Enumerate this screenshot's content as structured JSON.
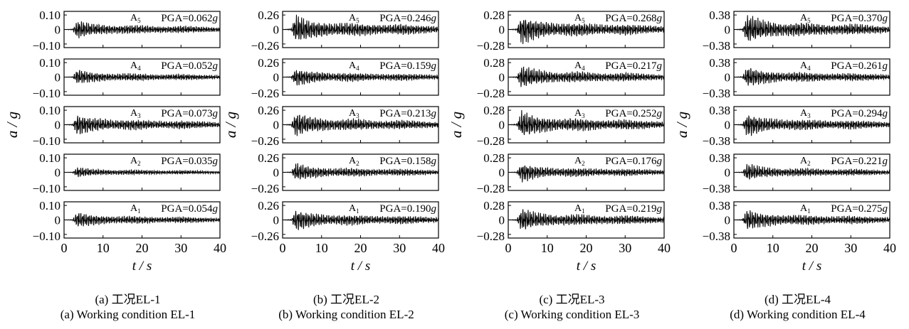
{
  "chart_data": [
    {
      "type": "line",
      "title": "",
      "xlabel": "t / s",
      "ylabel": "a / g",
      "xlim": [
        0,
        40
      ],
      "xticks": [
        "0",
        "10",
        "20",
        "30",
        "40"
      ],
      "amplitude": 0.1,
      "yticks": [
        "0.10",
        "0",
        "−0.10"
      ],
      "caption_cn": "(a)  工况EL-1",
      "caption_en": "(a)  Working condition EL-1",
      "series": [
        {
          "name": "A5",
          "label": "A",
          "sub": "5",
          "pga_text": "PGA=0.062",
          "pga": 0.062
        },
        {
          "name": "A4",
          "label": "A",
          "sub": "4",
          "pga_text": "PGA=0.052",
          "pga": 0.052
        },
        {
          "name": "A3",
          "label": "A",
          "sub": "3",
          "pga_text": "PGA=0.073",
          "pga": 0.073
        },
        {
          "name": "A2",
          "label": "A",
          "sub": "2",
          "pga_text": "PGA=0.035",
          "pga": 0.035
        },
        {
          "name": "A1",
          "label": "A",
          "sub": "1",
          "pga_text": "PGA=0.054",
          "pga": 0.054
        }
      ]
    },
    {
      "type": "line",
      "title": "",
      "xlabel": "t / s",
      "ylabel": "a / g",
      "xlim": [
        0,
        40
      ],
      "xticks": [
        "0",
        "10",
        "20",
        "30",
        "40"
      ],
      "amplitude": 0.26,
      "yticks": [
        "0.26",
        "0",
        "−0.26"
      ],
      "caption_cn": "(b)  工况EL-2",
      "caption_en": "(b)  Working condition EL-2",
      "series": [
        {
          "name": "A5",
          "label": "A",
          "sub": "5",
          "pga_text": "PGA=0.246",
          "pga": 0.246
        },
        {
          "name": "A4",
          "label": "A",
          "sub": "4",
          "pga_text": "PGA=0.159",
          "pga": 0.159
        },
        {
          "name": "A3",
          "label": "A",
          "sub": "3",
          "pga_text": "PGA=0.213",
          "pga": 0.213
        },
        {
          "name": "A2",
          "label": "A",
          "sub": "2",
          "pga_text": "PGA=0.158",
          "pga": 0.158
        },
        {
          "name": "A1",
          "label": "A",
          "sub": "1",
          "pga_text": "PGA=0.190",
          "pga": 0.19
        }
      ]
    },
    {
      "type": "line",
      "title": "",
      "xlabel": "t / s",
      "ylabel": "a / g",
      "xlim": [
        0,
        40
      ],
      "xticks": [
        "0",
        "10",
        "20",
        "30",
        "40"
      ],
      "amplitude": 0.28,
      "yticks": [
        "0.28",
        "0",
        "−0.28"
      ],
      "caption_cn": "(c)  工况EL-3",
      "caption_en": "(c)  Working condition EL-3",
      "series": [
        {
          "name": "A5",
          "label": "A",
          "sub": "5",
          "pga_text": "PGA=0.268",
          "pga": 0.268
        },
        {
          "name": "A4",
          "label": "A",
          "sub": "4",
          "pga_text": "PGA=0.217",
          "pga": 0.217
        },
        {
          "name": "A3",
          "label": "A",
          "sub": "3",
          "pga_text": "PGA=0.252",
          "pga": 0.252
        },
        {
          "name": "A2",
          "label": "A",
          "sub": "2",
          "pga_text": "PGA=0.176",
          "pga": 0.176
        },
        {
          "name": "A1",
          "label": "A",
          "sub": "1",
          "pga_text": "PGA=0.219",
          "pga": 0.219
        }
      ]
    },
    {
      "type": "line",
      "title": "",
      "xlabel": "t / s",
      "ylabel": "a / g",
      "xlim": [
        0,
        40
      ],
      "xticks": [
        "0",
        "10",
        "20",
        "30",
        "40"
      ],
      "amplitude": 0.38,
      "yticks": [
        "0.38",
        "0",
        "−0.38"
      ],
      "caption_cn": "(d)  工况EL-4",
      "caption_en": "(d)  Working condition EL-4",
      "series": [
        {
          "name": "A5",
          "label": "A",
          "sub": "5",
          "pga_text": "PGA=0.370",
          "pga": 0.37
        },
        {
          "name": "A4",
          "label": "A",
          "sub": "4",
          "pga_text": "PGA=0.261",
          "pga": 0.261
        },
        {
          "name": "A3",
          "label": "A",
          "sub": "3",
          "pga_text": "PGA=0.294",
          "pga": 0.294
        },
        {
          "name": "A2",
          "label": "A",
          "sub": "2",
          "pga_text": "PGA=0.221",
          "pga": 0.221
        },
        {
          "name": "A1",
          "label": "A",
          "sub": "1",
          "pga_text": "PGA=0.275",
          "pga": 0.275
        }
      ]
    }
  ],
  "pga_unit": "g",
  "colors": {
    "trace": "#000000",
    "frame": "#000000",
    "background": "#ffffff"
  }
}
